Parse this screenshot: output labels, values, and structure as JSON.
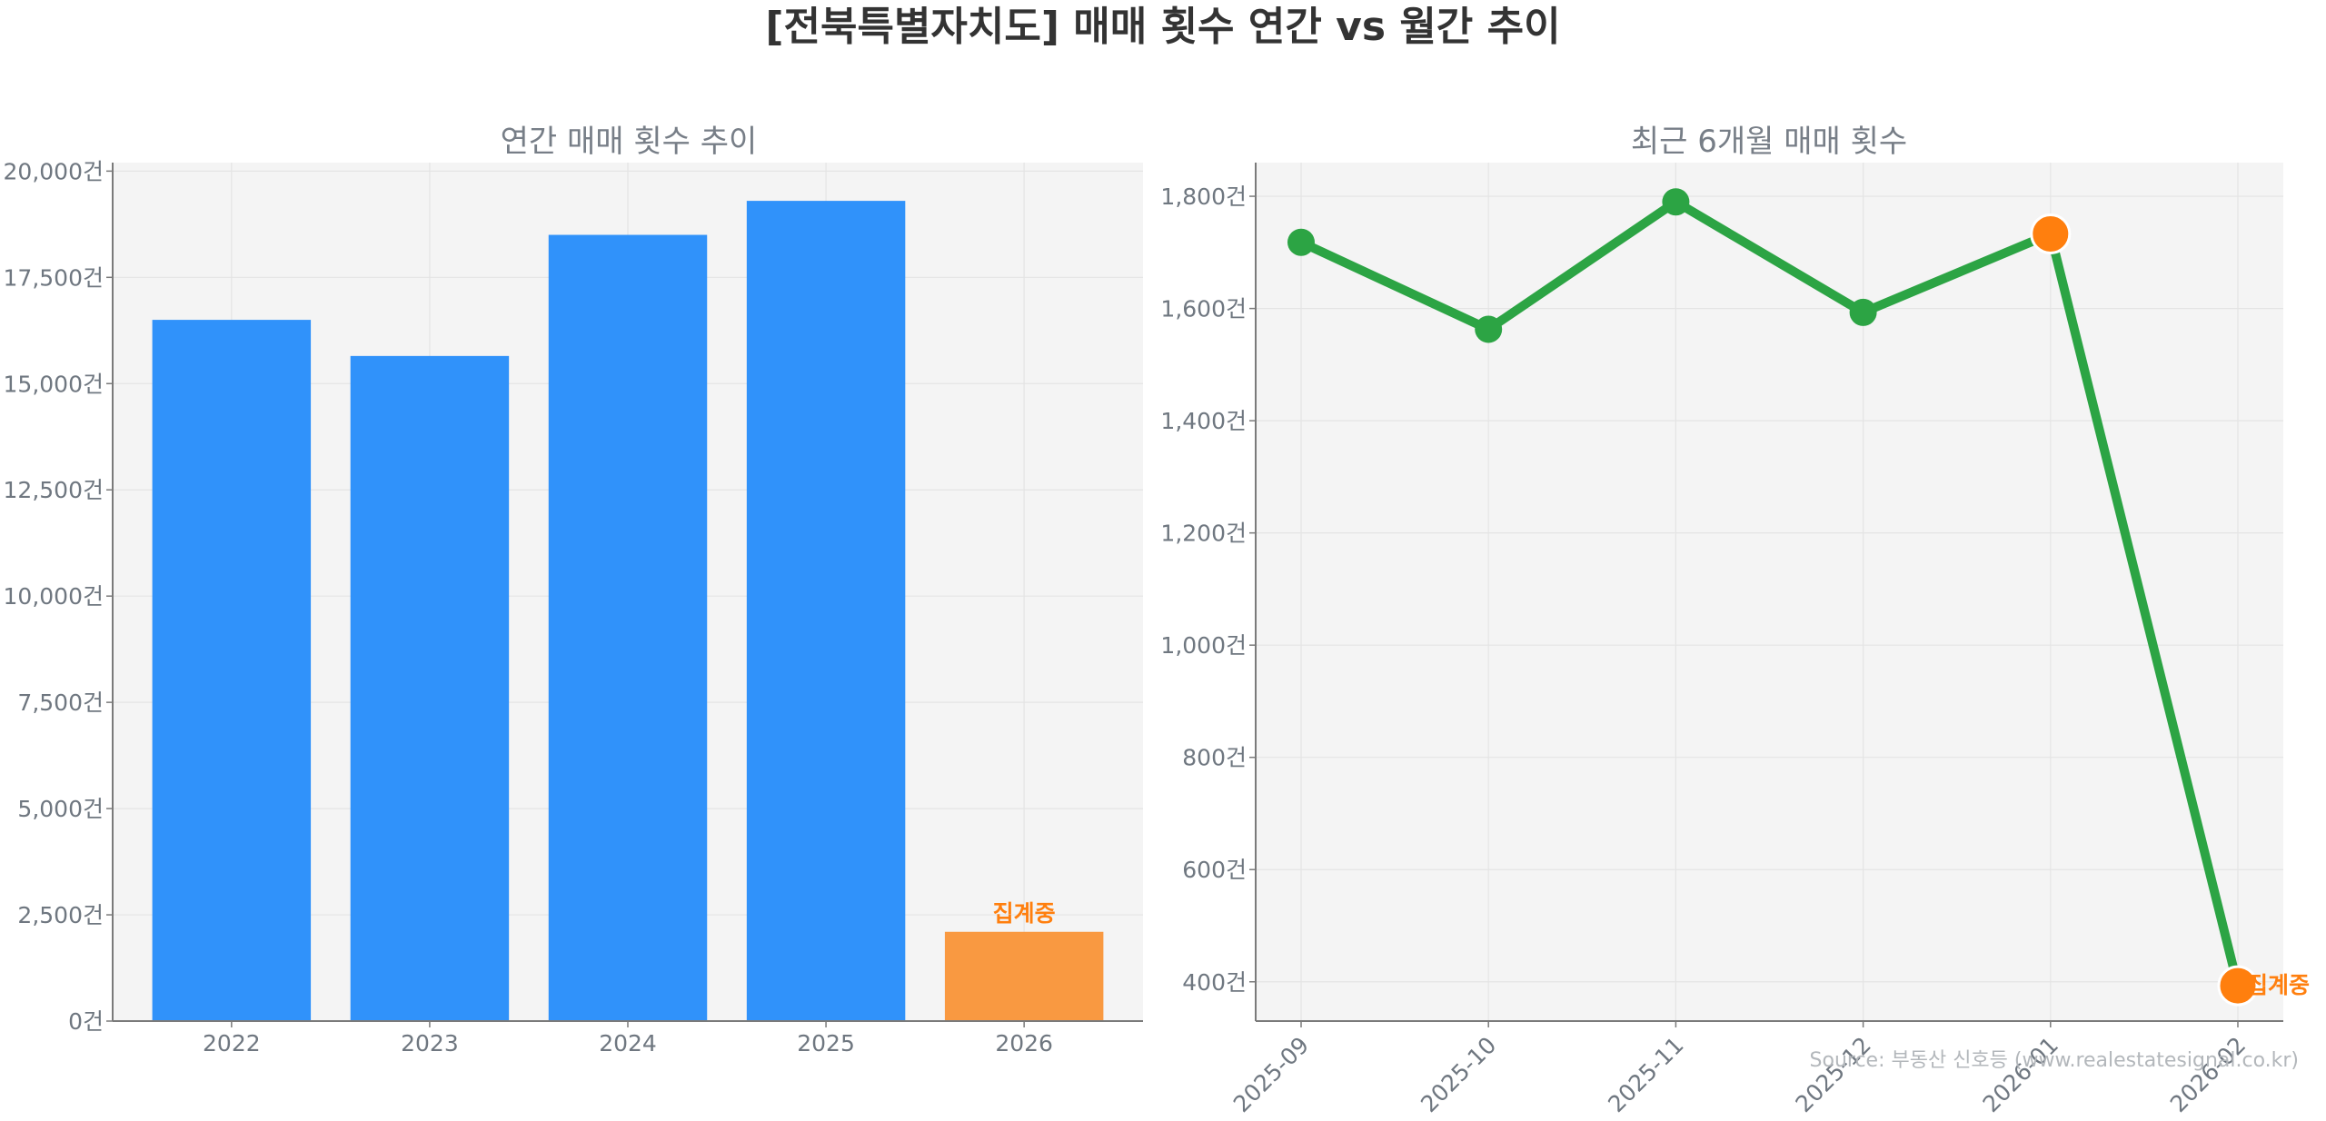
{
  "title": "[전북특별자치도] 매매 횟수 연간 vs 월간 추이",
  "source": "Source: 부동산 신호등 (www.realestatesignal.co.kr)",
  "colors": {
    "bar": "#3092fa",
    "bar_partial": "#f99941",
    "line": "#2ca444",
    "partial_marker": "#ff7f0e",
    "panel_bg": "#f4f4f4"
  },
  "chart_data": [
    {
      "type": "bar",
      "title": "연간 매매 횟수 추이",
      "categories": [
        "2022",
        "2023",
        "2024",
        "2025",
        "2026"
      ],
      "values": [
        16500,
        15650,
        18500,
        19300,
        2100
      ],
      "partial_index": 4,
      "partial_label": "집계중",
      "ylim": [
        0,
        20200
      ],
      "yticks": [
        0,
        2500,
        5000,
        7500,
        10000,
        12500,
        15000,
        17500,
        20000
      ],
      "ytick_labels": [
        "0건",
        "2,500건",
        "5,000건",
        "7,500건",
        "10,000건",
        "12,500건",
        "15,000건",
        "17,500건",
        "20,000건"
      ],
      "grid": true
    },
    {
      "type": "line",
      "title": "최근 6개월 매매 횟수",
      "categories": [
        "2025-09",
        "2025-10",
        "2025-11",
        "2025-12",
        "2026-01",
        "2026-02"
      ],
      "values": [
        1718,
        1563,
        1790,
        1593,
        1733,
        393
      ],
      "highlight_indices": [
        4,
        5
      ],
      "partial_label": "집계중",
      "ylim": [
        330,
        1860
      ],
      "yticks": [
        400,
        600,
        800,
        1000,
        1200,
        1400,
        1600,
        1800
      ],
      "ytick_labels": [
        "400건",
        "600건",
        "800건",
        "1,000건",
        "1,200건",
        "1,400건",
        "1,600건",
        "1,800건"
      ],
      "grid": true
    }
  ]
}
